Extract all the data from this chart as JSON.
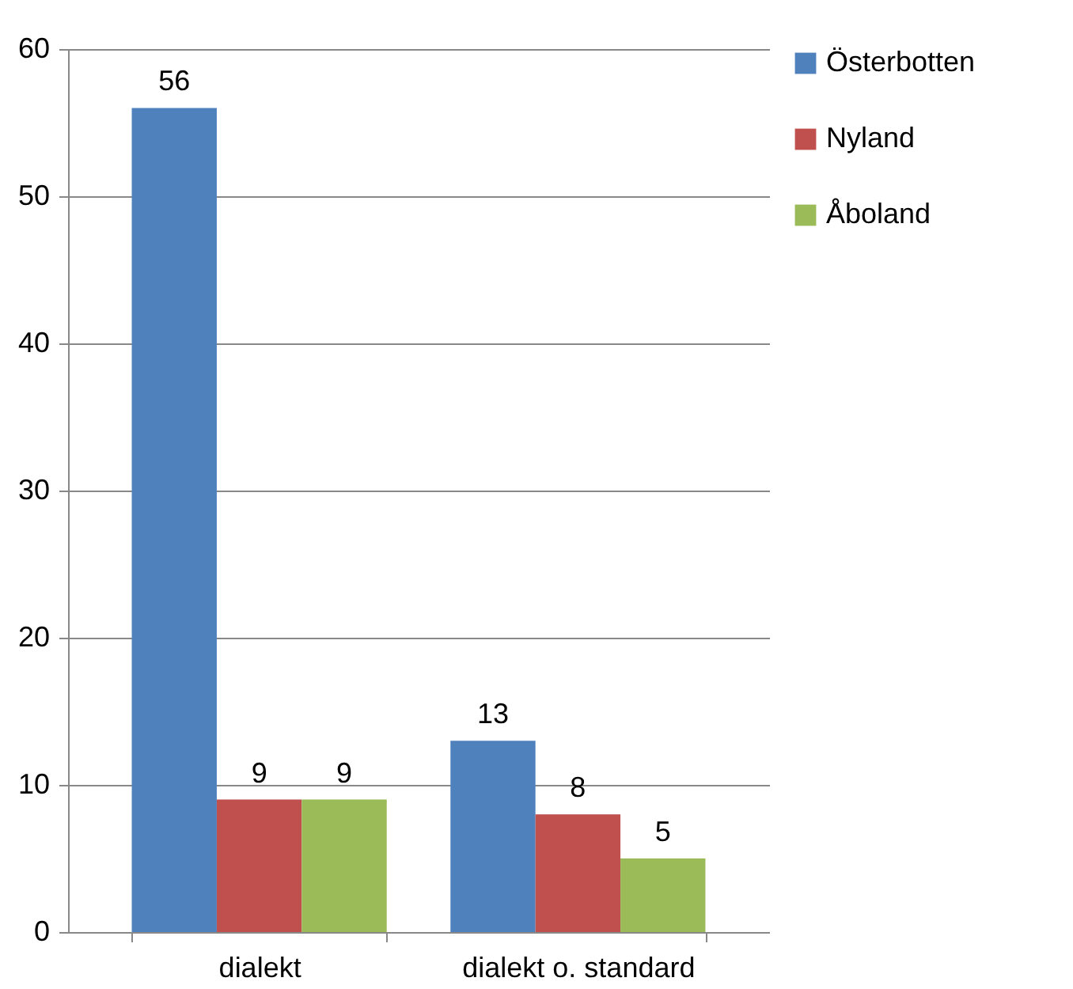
{
  "chart_data": {
    "type": "bar",
    "categories": [
      "dialekt",
      "dialekt o. standard"
    ],
    "series": [
      {
        "name": "Österbotten",
        "color": "#4f81bd",
        "values": [
          56,
          13
        ]
      },
      {
        "name": "Nyland",
        "color": "#c0504d",
        "values": [
          9,
          8
        ]
      },
      {
        "name": "Åboland",
        "color": "#9bbb59",
        "values": [
          9,
          5
        ]
      }
    ],
    "ylim": [
      0,
      60
    ],
    "yticks": [
      0,
      10,
      20,
      30,
      40,
      50,
      60
    ],
    "grid": "y",
    "legend": "right",
    "data_labels": true
  }
}
